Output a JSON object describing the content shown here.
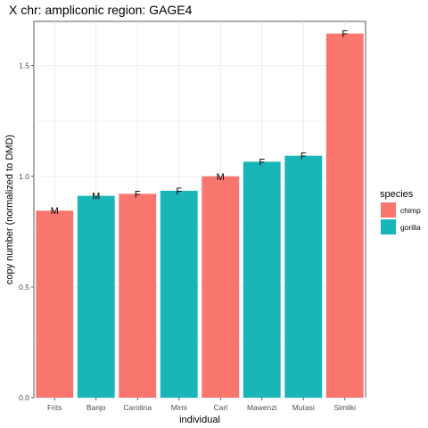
{
  "chart_data": {
    "type": "bar",
    "title": "X chr: ampliconic region: GAGE4",
    "xlabel": "individual",
    "ylabel": "copy number (normalized to DMD)",
    "ylim": [
      0,
      1.7
    ],
    "yticks": [
      0.0,
      0.5,
      1.0,
      1.5
    ],
    "ytick_labels": [
      "0.0",
      "0.5",
      "1.0",
      "1.5"
    ],
    "grid": true,
    "legend": {
      "title": "species",
      "placement": "right",
      "entries": [
        {
          "name": "chimp",
          "color": "#F8766D"
        },
        {
          "name": "gorilla",
          "color": "#1AB5B9"
        }
      ]
    },
    "categories": [
      "Frits",
      "Banjo",
      "Carolina",
      "Mimi",
      "Carl",
      "Mawenzi",
      "Mutasi",
      "Simliki"
    ],
    "values": [
      0.845,
      0.912,
      0.921,
      0.935,
      1.0,
      1.066,
      1.093,
      1.645
    ],
    "species": [
      "chimp",
      "gorilla",
      "chimp",
      "gorilla",
      "chimp",
      "gorilla",
      "gorilla",
      "chimp"
    ],
    "bar_labels": [
      "M",
      "M",
      "F",
      "F",
      "M",
      "F",
      "F",
      "F"
    ]
  }
}
